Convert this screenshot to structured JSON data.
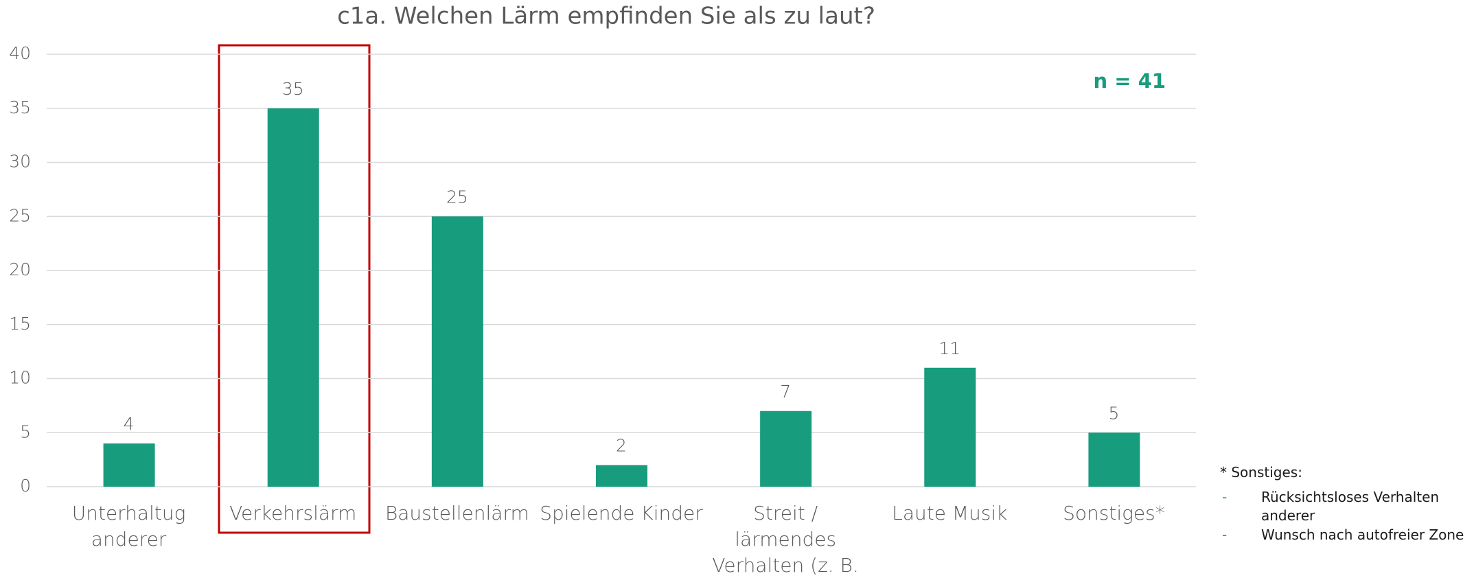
{
  "chart_data": {
    "type": "bar",
    "title": "c1a. Welchen Lärm empfinden Sie als zu laut?",
    "categories": [
      "Unterhaltug anderer",
      "Verkehrslärm",
      "Baustellenlärm",
      "Spielende Kinder",
      "Streit / lärmendes Verhalten (z. B. Skateboard)",
      "Laute Musik",
      "Sonstiges*"
    ],
    "values": [
      4,
      35,
      25,
      2,
      7,
      11,
      5
    ],
    "color": "#179c7d",
    "ylim": [
      0,
      40
    ],
    "yticks": [
      0,
      5,
      10,
      15,
      20,
      25,
      30,
      35,
      40
    ],
    "grid": true,
    "annotation": "n = 41",
    "footnote": {
      "title": "* Sonstiges:",
      "items": [
        "Rücksichtsloses Verhalten anderer",
        "Wunsch nach autofreier Zone"
      ]
    }
  }
}
